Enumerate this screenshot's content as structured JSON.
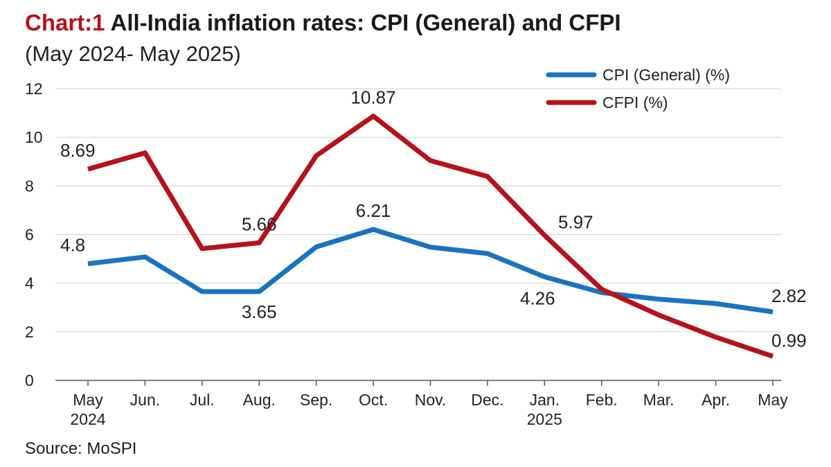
{
  "header": {
    "title_prefix": "Chart:1",
    "title_main": "All-India inflation rates: CPI (General) and CFPI",
    "subtitle": "(May 2024- May 2025)"
  },
  "footer": {
    "source": "Source: MoSPI"
  },
  "chart_data": {
    "type": "line",
    "categories": [
      "May",
      "Jun.",
      "Jul.",
      "Aug.",
      "Sep.",
      "Oct.",
      "Nov.",
      "Dec.",
      "Jan.",
      "Feb.",
      "Mar.",
      "Apr.",
      "May"
    ],
    "category_years": [
      "2024",
      "",
      "",
      "",
      "",
      "",
      "",
      "",
      "2025",
      "",
      "",
      "",
      ""
    ],
    "ylim": [
      0,
      12
    ],
    "yticks": [
      0,
      2,
      4,
      6,
      8,
      10,
      12
    ],
    "grid": "horizontal",
    "legend_position": "top-right",
    "series": [
      {
        "name": "CPI (General) (%)",
        "color": "#1a73c0",
        "values": [
          4.8,
          5.08,
          3.65,
          3.65,
          5.49,
          6.21,
          5.48,
          5.22,
          4.26,
          3.61,
          3.34,
          3.16,
          2.82
        ],
        "labels": [
          {
            "index": 0,
            "text": "4.8",
            "position": "above"
          },
          {
            "index": 3,
            "text": "3.65",
            "position": "below"
          },
          {
            "index": 5,
            "text": "6.21",
            "position": "above"
          },
          {
            "index": 8,
            "text": "4.26",
            "position": "below"
          },
          {
            "index": 12,
            "text": "2.82",
            "position": "above"
          }
        ]
      },
      {
        "name": "CFPI (%)",
        "color": "#b5121b",
        "values": [
          8.69,
          9.36,
          5.42,
          5.66,
          9.24,
          10.87,
          9.04,
          8.39,
          5.97,
          3.75,
          2.69,
          1.78,
          0.99
        ],
        "labels": [
          {
            "index": 0,
            "text": "8.69",
            "position": "above"
          },
          {
            "index": 3,
            "text": "5.66",
            "position": "above"
          },
          {
            "index": 5,
            "text": "10.87",
            "position": "above"
          },
          {
            "index": 8,
            "text": "5.97",
            "position": "above"
          },
          {
            "index": 12,
            "text": "0.99",
            "position": "above"
          }
        ]
      }
    ]
  }
}
